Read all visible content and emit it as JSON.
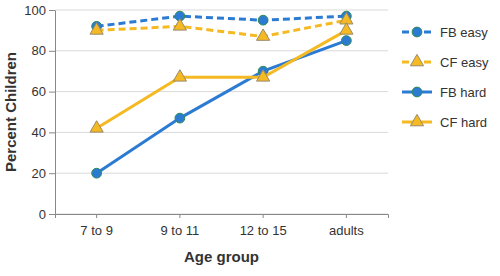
{
  "chart_data": {
    "type": "line",
    "x_label": "Age group",
    "y_label": "Percent Children",
    "categories": [
      "7 to 9",
      "9 to 11",
      "12 to 15",
      "adults"
    ],
    "series": [
      {
        "name": "FB easy",
        "color": "#2b7bd3",
        "marker": "circle",
        "line_style": "dashed",
        "values": [
          92,
          97,
          95,
          97
        ]
      },
      {
        "name": "CF easy",
        "color": "#f5b921",
        "marker": "triangle",
        "line_style": "dashed",
        "values": [
          90,
          92,
          87,
          95
        ]
      },
      {
        "name": "FB hard",
        "color": "#2b7bd3",
        "marker": "circle",
        "line_style": "solid",
        "values": [
          20,
          47,
          70,
          85
        ]
      },
      {
        "name": "CF hard",
        "color": "#f5b921",
        "marker": "triangle",
        "line_style": "solid",
        "values": [
          42,
          67,
          67,
          90
        ]
      }
    ],
    "ylim": [
      0,
      100
    ],
    "yticks": [
      0,
      20,
      40,
      60,
      80,
      100
    ],
    "grid": true,
    "legend": "right"
  }
}
